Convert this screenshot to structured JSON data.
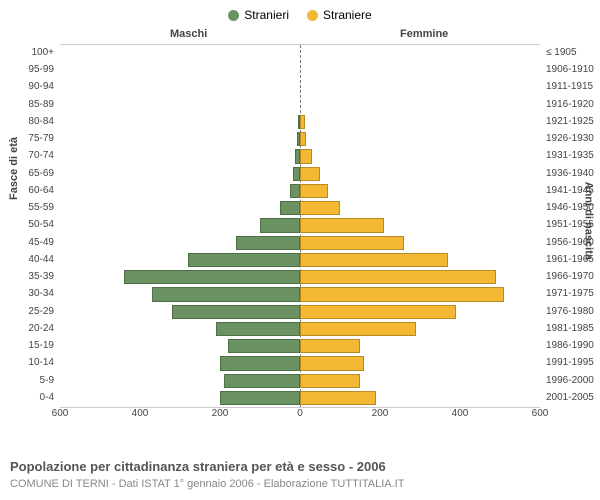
{
  "legend": {
    "male": "Stranieri",
    "female": "Straniere",
    "male_color": "#6b9362",
    "female_color": "#f4b933"
  },
  "top_labels": {
    "male": "Maschi",
    "female": "Femmine"
  },
  "axis_labels": {
    "left": "Fasce di età",
    "right": "Anni di nascita"
  },
  "caption": "Popolazione per cittadinanza straniera per età e sesso - 2006",
  "subcaption": "COMUNE DI TERNI - Dati ISTAT 1° gennaio 2006 - Elaborazione TUTTITALIA.IT",
  "chart": {
    "type": "population-pyramid",
    "xmax": 600,
    "xtick_step": 200,
    "xticks": [
      "600",
      "400",
      "200",
      "0",
      "200",
      "400",
      "600"
    ],
    "background_color": "#ffffff",
    "border_color": "#cccccc",
    "bar_border_color": "rgba(0,0,0,0.25)",
    "rows": [
      {
        "age": "100+",
        "birth": "≤ 1905",
        "m": 0,
        "f": 0
      },
      {
        "age": "95-99",
        "birth": "1906-1910",
        "m": 0,
        "f": 0
      },
      {
        "age": "90-94",
        "birth": "1911-1915",
        "m": 0,
        "f": 0
      },
      {
        "age": "85-89",
        "birth": "1916-1920",
        "m": 0,
        "f": 0
      },
      {
        "age": "80-84",
        "birth": "1921-1925",
        "m": 5,
        "f": 12
      },
      {
        "age": "75-79",
        "birth": "1926-1930",
        "m": 8,
        "f": 14
      },
      {
        "age": "70-74",
        "birth": "1931-1935",
        "m": 12,
        "f": 30
      },
      {
        "age": "65-69",
        "birth": "1936-1940",
        "m": 18,
        "f": 50
      },
      {
        "age": "60-64",
        "birth": "1941-1945",
        "m": 25,
        "f": 70
      },
      {
        "age": "55-59",
        "birth": "1946-1950",
        "m": 50,
        "f": 100
      },
      {
        "age": "50-54",
        "birth": "1951-1955",
        "m": 100,
        "f": 210
      },
      {
        "age": "45-49",
        "birth": "1956-1960",
        "m": 160,
        "f": 260
      },
      {
        "age": "40-44",
        "birth": "1961-1965",
        "m": 280,
        "f": 370
      },
      {
        "age": "35-39",
        "birth": "1966-1970",
        "m": 440,
        "f": 490
      },
      {
        "age": "30-34",
        "birth": "1971-1975",
        "m": 370,
        "f": 510
      },
      {
        "age": "25-29",
        "birth": "1976-1980",
        "m": 320,
        "f": 390
      },
      {
        "age": "20-24",
        "birth": "1981-1985",
        "m": 210,
        "f": 290
      },
      {
        "age": "15-19",
        "birth": "1986-1990",
        "m": 180,
        "f": 150
      },
      {
        "age": "10-14",
        "birth": "1991-1995",
        "m": 200,
        "f": 160
      },
      {
        "age": "5-9",
        "birth": "1996-2000",
        "m": 190,
        "f": 150
      },
      {
        "age": "0-4",
        "birth": "2001-2005",
        "m": 200,
        "f": 190
      }
    ]
  }
}
